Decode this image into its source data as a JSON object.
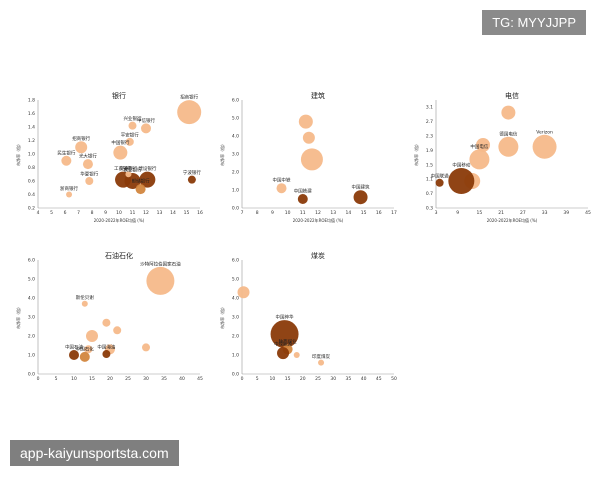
{
  "watermark": {
    "tg": "TG: MYYJJPP",
    "site": "app-kaiyunsportsta.com"
  },
  "colors": {
    "light": "#f5b98a",
    "mid": "#d2863e",
    "dark": "#8a3a08",
    "axis": "#999999"
  },
  "chart_data": [
    {
      "type": "scatter",
      "title": "银行",
      "xlabel": "2020-2022年ROE均值 (%)",
      "ylabel": "市净率（倍）",
      "xlim": [
        4,
        16
      ],
      "ylim": [
        0.2,
        1.8
      ],
      "xticks": [
        4,
        5,
        6,
        7,
        8,
        9,
        10,
        11,
        12,
        13,
        14,
        15,
        16
      ],
      "yticks": [
        0.2,
        0.4,
        0.6,
        0.8,
        1.0,
        1.2,
        1.4,
        1.6,
        1.8
      ],
      "points": [
        {
          "label": "招商银行",
          "x": 15.2,
          "y": 1.62,
          "r": 12,
          "tone": "light"
        },
        {
          "label": "宁波银行",
          "x": 15.4,
          "y": 0.62,
          "r": 4,
          "tone": "dark"
        },
        {
          "label": "中信银行",
          "x": 12.0,
          "y": 1.38,
          "r": 5,
          "tone": "light"
        },
        {
          "label": "兴业银行",
          "x": 11.0,
          "y": 1.42,
          "r": 4,
          "tone": "light"
        },
        {
          "label": "平安银行",
          "x": 10.8,
          "y": 1.18,
          "r": 4,
          "tone": "light"
        },
        {
          "label": "招商银行",
          "x": 7.2,
          "y": 1.1,
          "r": 6,
          "tone": "light"
        },
        {
          "label": "中国银行",
          "x": 10.1,
          "y": 1.02,
          "r": 7,
          "tone": "light"
        },
        {
          "label": "工商银行",
          "x": 10.3,
          "y": 0.62,
          "r": 8,
          "tone": "dark"
        },
        {
          "label": "农业银行",
          "x": 11.0,
          "y": 0.6,
          "r": 8,
          "tone": "dark"
        },
        {
          "label": "建设银行",
          "x": 12.1,
          "y": 0.62,
          "r": 8,
          "tone": "dark"
        },
        {
          "label": "交通银行",
          "x": 10.7,
          "y": 0.7,
          "r": 3,
          "tone": "light"
        },
        {
          "label": "光大银行",
          "x": 7.7,
          "y": 0.85,
          "r": 5,
          "tone": "light"
        },
        {
          "label": "民生银行",
          "x": 6.1,
          "y": 0.9,
          "r": 5,
          "tone": "light"
        },
        {
          "label": "华夏银行",
          "x": 7.8,
          "y": 0.6,
          "r": 4,
          "tone": "light"
        },
        {
          "label": "浙商银行",
          "x": 6.3,
          "y": 0.4,
          "r": 3,
          "tone": "light"
        },
        {
          "label": "邮储银行",
          "x": 11.6,
          "y": 0.48,
          "r": 5,
          "tone": "mid"
        }
      ]
    },
    {
      "type": "scatter",
      "title": "建筑",
      "xlabel": "2020-2022年ROE均值 (%)",
      "ylabel": "市净率（倍）",
      "xlim": [
        7,
        17
      ],
      "ylim": [
        0,
        6
      ],
      "xticks": [
        7,
        8,
        9,
        10,
        11,
        12,
        13,
        14,
        15,
        16,
        17
      ],
      "yticks": [
        0,
        1,
        2,
        3,
        4,
        5,
        6
      ],
      "points": [
        {
          "label": "",
          "x": 11.2,
          "y": 4.8,
          "r": 7,
          "tone": "light"
        },
        {
          "label": "",
          "x": 11.4,
          "y": 3.9,
          "r": 6,
          "tone": "light"
        },
        {
          "label": "",
          "x": 11.6,
          "y": 2.7,
          "r": 11,
          "tone": "light"
        },
        {
          "label": "中国中铁",
          "x": 9.6,
          "y": 1.1,
          "r": 5,
          "tone": "light"
        },
        {
          "label": "中国铁建",
          "x": 11.0,
          "y": 0.5,
          "r": 5,
          "tone": "dark"
        },
        {
          "label": "中国建筑",
          "x": 14.8,
          "y": 0.6,
          "r": 7,
          "tone": "dark"
        }
      ]
    },
    {
      "type": "scatter",
      "title": "电信",
      "xlabel": "2020-2022年ROE均值 (%)",
      "ylabel": "市净率（倍）",
      "xlim": [
        3,
        45
      ],
      "ylim": [
        0.3,
        3.3
      ],
      "xticks": [
        3,
        9,
        15,
        21,
        27,
        33,
        39,
        45
      ],
      "yticks": [
        0.3,
        0.7,
        1.1,
        1.5,
        1.9,
        2.3,
        2.7,
        3.1
      ],
      "points": [
        {
          "label": "Verizon",
          "x": 33,
          "y": 2.0,
          "r": 12,
          "tone": "light"
        },
        {
          "label": "德国电信",
          "x": 23,
          "y": 2.0,
          "r": 10,
          "tone": "light"
        },
        {
          "label": "",
          "x": 23,
          "y": 2.95,
          "r": 7,
          "tone": "light"
        },
        {
          "label": "",
          "x": 16,
          "y": 2.05,
          "r": 7,
          "tone": "light"
        },
        {
          "label": "中国电信",
          "x": 15,
          "y": 1.65,
          "r": 10,
          "tone": "light"
        },
        {
          "label": "",
          "x": 13,
          "y": 1.05,
          "r": 8,
          "tone": "light"
        },
        {
          "label": "中国移动",
          "x": 10,
          "y": 1.05,
          "r": 13,
          "tone": "dark"
        },
        {
          "label": "中国联通",
          "x": 4,
          "y": 1.0,
          "r": 4,
          "tone": "dark"
        }
      ]
    },
    {
      "type": "scatter",
      "title": "石油石化",
      "xlabel": "",
      "ylabel": "市净率（倍）",
      "xlim": [
        0,
        45
      ],
      "ylim": [
        0,
        6
      ],
      "xticks": [
        0,
        5,
        10,
        15,
        20,
        25,
        30,
        35,
        40,
        45
      ],
      "yticks": [
        0,
        1,
        2,
        3,
        4,
        5,
        6
      ],
      "points": [
        {
          "label": "沙特阿拉伯国家石油",
          "x": 34,
          "y": 4.9,
          "r": 14,
          "tone": "light"
        },
        {
          "label": "斯伦贝谢",
          "x": 13,
          "y": 3.7,
          "r": 3,
          "tone": "light"
        },
        {
          "label": "",
          "x": 19,
          "y": 2.7,
          "r": 4,
          "tone": "light"
        },
        {
          "label": "",
          "x": 15,
          "y": 2.0,
          "r": 6,
          "tone": "light"
        },
        {
          "label": "",
          "x": 22,
          "y": 2.3,
          "r": 4,
          "tone": "light"
        },
        {
          "label": "",
          "x": 30,
          "y": 1.4,
          "r": 4,
          "tone": "light"
        },
        {
          "label": "",
          "x": 20,
          "y": 1.3,
          "r": 5,
          "tone": "light"
        },
        {
          "label": "",
          "x": 14,
          "y": 1.3,
          "r": 4,
          "tone": "light"
        },
        {
          "label": "中国石油",
          "x": 10,
          "y": 1.0,
          "r": 5,
          "tone": "dark"
        },
        {
          "label": "中国石化",
          "x": 13,
          "y": 0.9,
          "r": 5,
          "tone": "mid"
        },
        {
          "label": "中国海油",
          "x": 19,
          "y": 1.05,
          "r": 4,
          "tone": "dark"
        }
      ]
    },
    {
      "type": "scatter",
      "title": "煤炭",
      "xlabel": "",
      "ylabel": "市净率（倍）",
      "xlim": [
        0,
        50
      ],
      "ylim": [
        0,
        6
      ],
      "xticks": [
        0,
        5,
        10,
        15,
        20,
        25,
        30,
        35,
        40,
        45,
        50
      ],
      "yticks": [
        0,
        1,
        2,
        3,
        4,
        5,
        6
      ],
      "points": [
        {
          "label": "",
          "x": 0.5,
          "y": 4.3,
          "r": 6,
          "tone": "light"
        },
        {
          "label": "中国神华",
          "x": 14,
          "y": 2.1,
          "r": 14,
          "tone": "dark"
        },
        {
          "label": "陕西煤业",
          "x": 15,
          "y": 1.3,
          "r": 5,
          "tone": "mid"
        },
        {
          "label": "中煤能源",
          "x": 13.5,
          "y": 1.1,
          "r": 6,
          "tone": "dark"
        },
        {
          "label": "",
          "x": 18,
          "y": 1.0,
          "r": 3,
          "tone": "light"
        },
        {
          "label": "印度煤炭",
          "x": 26,
          "y": 0.6,
          "r": 3,
          "tone": "light"
        }
      ]
    }
  ]
}
